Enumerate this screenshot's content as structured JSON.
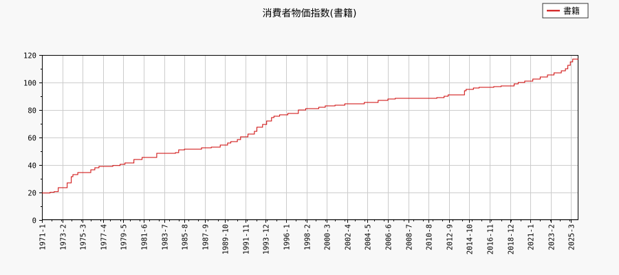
{
  "chart_data": {
    "type": "line",
    "title": "消費者物価指数(書籍)",
    "xlabel": "",
    "ylabel": "",
    "ylim": [
      0,
      120
    ],
    "yticks": [
      0,
      20,
      40,
      60,
      80,
      100,
      120
    ],
    "xlim": [
      "1971-01",
      "2025-12"
    ],
    "xticks": [
      "1971-1",
      "1973-2",
      "1975-3",
      "1977-4",
      "1979-5",
      "1981-6",
      "1983-7",
      "1985-8",
      "1987-9",
      "1989-10",
      "1991-11",
      "1993-12",
      "1996-1",
      "1998-2",
      "2000-3",
      "2002-4",
      "2004-5",
      "2006-6",
      "2008-7",
      "2010-8",
      "2012-9",
      "2014-10",
      "2016-11",
      "2018-12",
      "2021-1",
      "2023-2",
      "2025-3"
    ],
    "grid": true,
    "legend_position": "top-right",
    "step": true,
    "series": [
      {
        "name": "書籍",
        "color": "#cc0000",
        "points": [
          [
            "1971-01",
            19.6
          ],
          [
            "1971-11",
            20.1
          ],
          [
            "1972-04",
            20.6
          ],
          [
            "1972-09",
            23.5
          ],
          [
            "1973-08",
            27.0
          ],
          [
            "1974-01",
            31.5
          ],
          [
            "1974-03",
            33.0
          ],
          [
            "1974-09",
            34.5
          ],
          [
            "1976-01",
            36.5
          ],
          [
            "1976-06",
            38.0
          ],
          [
            "1976-11",
            39.0
          ],
          [
            "1978-04",
            39.6
          ],
          [
            "1979-01",
            40.5
          ],
          [
            "1979-07",
            41.5
          ],
          [
            "1980-06",
            44.0
          ],
          [
            "1981-04",
            45.5
          ],
          [
            "1982-10",
            48.5
          ],
          [
            "1984-09",
            49.0
          ],
          [
            "1985-01",
            51.0
          ],
          [
            "1985-08",
            51.5
          ],
          [
            "1987-05",
            52.5
          ],
          [
            "1988-05",
            53.0
          ],
          [
            "1989-04",
            54.5
          ],
          [
            "1990-01",
            56.0
          ],
          [
            "1990-05",
            57.0
          ],
          [
            "1991-01",
            58.5
          ],
          [
            "1991-05",
            60.5
          ],
          [
            "1992-02",
            62.5
          ],
          [
            "1992-10",
            64.5
          ],
          [
            "1993-01",
            67.5
          ],
          [
            "1993-08",
            69.5
          ],
          [
            "1994-01",
            72.0
          ],
          [
            "1994-07",
            74.5
          ],
          [
            "1994-10",
            75.5
          ],
          [
            "1995-05",
            76.5
          ],
          [
            "1996-03",
            77.5
          ],
          [
            "1997-04",
            80.0
          ],
          [
            "1998-01",
            81.0
          ],
          [
            "1999-05",
            82.0
          ],
          [
            "2000-01",
            83.0
          ],
          [
            "2001-01",
            83.5
          ],
          [
            "2002-01",
            84.5
          ],
          [
            "2004-01",
            85.5
          ],
          [
            "2005-06",
            87.0
          ],
          [
            "2006-06",
            88.0
          ],
          [
            "2007-03",
            88.5
          ],
          [
            "2010-08",
            88.5
          ],
          [
            "2011-06",
            89.0
          ],
          [
            "2012-03",
            90.0
          ],
          [
            "2012-08",
            91.0
          ],
          [
            "2014-04",
            94.0
          ],
          [
            "2014-06",
            95.0
          ],
          [
            "2015-03",
            96.0
          ],
          [
            "2015-10",
            96.5
          ],
          [
            "2017-04",
            97.0
          ],
          [
            "2018-01",
            97.5
          ],
          [
            "2019-05",
            99.0
          ],
          [
            "2019-10",
            100.0
          ],
          [
            "2020-06",
            101.0
          ],
          [
            "2021-04",
            102.5
          ],
          [
            "2022-01",
            104.0
          ],
          [
            "2022-10",
            105.5
          ],
          [
            "2023-06",
            107.0
          ],
          [
            "2024-03",
            108.5
          ],
          [
            "2024-08",
            110.0
          ],
          [
            "2024-11",
            112.5
          ],
          [
            "2025-02",
            115.0
          ],
          [
            "2025-05",
            117.0
          ],
          [
            "2025-12",
            117.0
          ]
        ]
      }
    ]
  }
}
